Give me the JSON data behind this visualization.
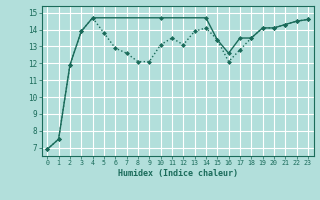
{
  "xlabel": "Humidex (Indice chaleur)",
  "bg_color": "#b2dfdb",
  "grid_color": "#ffffff",
  "line_color": "#1a6b5a",
  "x_ticks": [
    0,
    1,
    2,
    3,
    4,
    5,
    6,
    7,
    8,
    9,
    10,
    11,
    12,
    13,
    14,
    15,
    16,
    17,
    18,
    19,
    20,
    21,
    22,
    23
  ],
  "y_ticks": [
    7,
    8,
    9,
    10,
    11,
    12,
    13,
    14,
    15
  ],
  "ylim": [
    6.5,
    15.4
  ],
  "xlim": [
    -0.5,
    23.5
  ],
  "dotted_x": [
    0,
    1,
    2,
    3,
    4,
    5,
    6,
    7,
    8,
    9,
    10,
    11,
    12,
    13,
    14,
    15,
    16,
    17,
    18,
    19,
    20,
    21,
    22,
    23
  ],
  "dotted_y": [
    6.9,
    7.5,
    11.9,
    13.9,
    14.7,
    13.8,
    12.9,
    12.6,
    12.1,
    12.1,
    13.1,
    13.5,
    13.1,
    13.9,
    14.1,
    13.4,
    12.1,
    12.8,
    13.5,
    14.1,
    14.1,
    14.3,
    14.5,
    14.6
  ],
  "solid_x": [
    0,
    1,
    2,
    3,
    4,
    10,
    14,
    15,
    16,
    17,
    18,
    19,
    20,
    21,
    22,
    23
  ],
  "solid_y": [
    6.9,
    7.5,
    11.9,
    13.9,
    14.7,
    14.7,
    14.7,
    13.4,
    12.6,
    13.5,
    13.5,
    14.1,
    14.1,
    14.3,
    14.5,
    14.6
  ]
}
